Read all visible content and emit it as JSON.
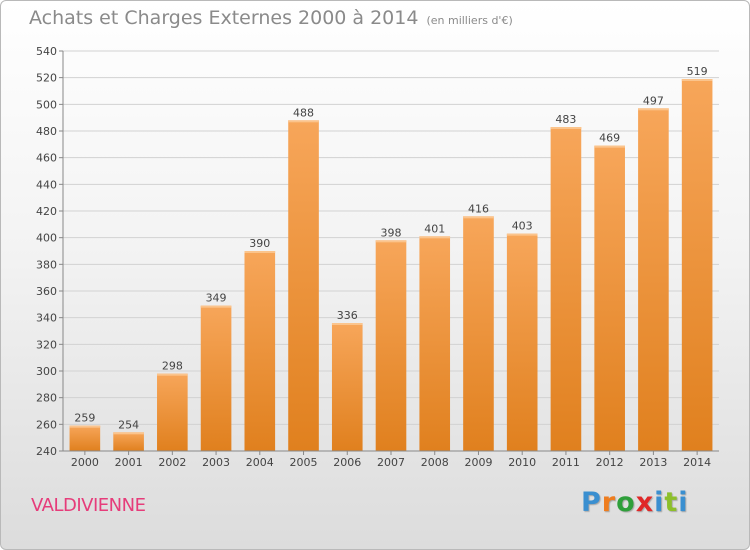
{
  "header": {
    "title": "Achats et Charges Externes 2000 à 2014",
    "subtitle": "(en milliers d'€)"
  },
  "footer": {
    "commune": "VALDIVIENNE",
    "logo_text": "Proxiti",
    "logo_letters": [
      {
        "char": "P",
        "color": "#3a8fd0"
      },
      {
        "char": "r",
        "color": "#ee7d1f"
      },
      {
        "char": "o",
        "color": "#2e9f3a"
      },
      {
        "char": "x",
        "color": "#e02828"
      },
      {
        "char": "i",
        "color": "#3a8fd0"
      },
      {
        "char": "t",
        "color": "#8dbf2a"
      },
      {
        "char": "i",
        "color": "#3a8fd0"
      }
    ]
  },
  "colors": {
    "bar_light": "#f7a65a",
    "bar_dark": "#e0801e",
    "grid": "#d2d2d2",
    "axis": "#888888",
    "text": "#444444"
  },
  "chart_data": {
    "type": "bar",
    "title": "Achats et Charges Externes 2000 à 2014",
    "subtitle": "(en milliers d'€)",
    "categories": [
      "2000",
      "2001",
      "2002",
      "2003",
      "2004",
      "2005",
      "2006",
      "2007",
      "2008",
      "2009",
      "2010",
      "2011",
      "2012",
      "2013",
      "2014"
    ],
    "values": [
      259,
      254,
      298,
      349,
      390,
      488,
      336,
      398,
      401,
      416,
      403,
      483,
      469,
      497,
      519
    ],
    "ylim": [
      240,
      540
    ],
    "yticks": [
      240,
      260,
      280,
      300,
      320,
      340,
      360,
      380,
      400,
      420,
      440,
      460,
      480,
      500,
      520,
      540
    ],
    "grid": true,
    "data_labels": true
  }
}
